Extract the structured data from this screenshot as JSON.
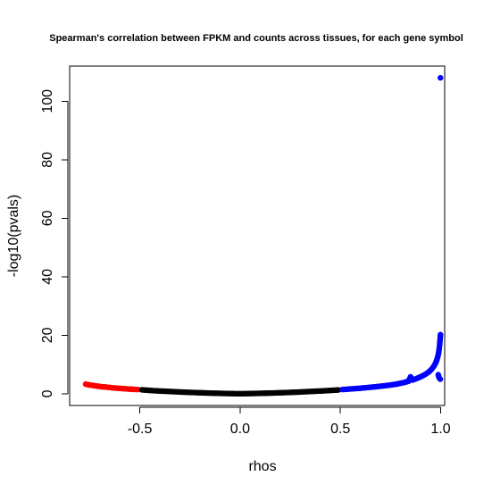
{
  "chart_data": {
    "type": "scatter",
    "title": "Spearman's correlation between FPKM and counts across tissues, for each gene symbol",
    "xlabel": "rhos",
    "ylabel": "-log10(pvals)",
    "xlim": [
      -0.85,
      1.02
    ],
    "ylim": [
      -4,
      112
    ],
    "x_ticks": [
      -0.5,
      0.0,
      0.5,
      1.0
    ],
    "x_tick_labels": [
      "-0.5",
      "0.0",
      "0.5",
      "1.0"
    ],
    "y_ticks": [
      0,
      20,
      40,
      60,
      80,
      100
    ],
    "y_tick_labels": [
      "0",
      "20",
      "40",
      "60",
      "80",
      "100"
    ],
    "grid": false,
    "series": [
      {
        "color": "#ff0000",
        "points": [
          [
            -0.77,
            3.3
          ],
          [
            -0.75,
            3.0
          ],
          [
            -0.73,
            2.8
          ],
          [
            -0.71,
            2.6
          ],
          [
            -0.69,
            2.4
          ],
          [
            -0.67,
            2.3
          ],
          [
            -0.65,
            2.15
          ],
          [
            -0.63,
            2.0
          ],
          [
            -0.61,
            1.9
          ],
          [
            -0.59,
            1.8
          ],
          [
            -0.57,
            1.7
          ],
          [
            -0.55,
            1.6
          ],
          [
            -0.53,
            1.5
          ],
          [
            -0.51,
            1.45
          ]
        ]
      },
      {
        "color": "#000000",
        "points": [
          [
            -0.49,
            1.35
          ],
          [
            -0.46,
            1.2
          ],
          [
            -0.43,
            1.05
          ],
          [
            -0.4,
            0.95
          ],
          [
            -0.37,
            0.85
          ],
          [
            -0.34,
            0.75
          ],
          [
            -0.31,
            0.65
          ],
          [
            -0.28,
            0.55
          ],
          [
            -0.25,
            0.48
          ],
          [
            -0.22,
            0.4
          ],
          [
            -0.19,
            0.33
          ],
          [
            -0.16,
            0.26
          ],
          [
            -0.13,
            0.2
          ],
          [
            -0.1,
            0.15
          ],
          [
            -0.07,
            0.1
          ],
          [
            -0.04,
            0.06
          ],
          [
            -0.01,
            0.02
          ],
          [
            0.02,
            0.04
          ],
          [
            0.05,
            0.08
          ],
          [
            0.08,
            0.12
          ],
          [
            0.11,
            0.17
          ],
          [
            0.14,
            0.22
          ],
          [
            0.17,
            0.28
          ],
          [
            0.2,
            0.35
          ],
          [
            0.23,
            0.42
          ],
          [
            0.26,
            0.5
          ],
          [
            0.29,
            0.58
          ],
          [
            0.32,
            0.68
          ],
          [
            0.35,
            0.78
          ],
          [
            0.38,
            0.88
          ],
          [
            0.41,
            0.98
          ],
          [
            0.44,
            1.1
          ],
          [
            0.47,
            1.22
          ],
          [
            0.49,
            1.32
          ]
        ]
      },
      {
        "color": "#0000ff",
        "points": [
          [
            0.51,
            1.45
          ],
          [
            0.54,
            1.6
          ],
          [
            0.57,
            1.75
          ],
          [
            0.6,
            1.9
          ],
          [
            0.63,
            2.1
          ],
          [
            0.66,
            2.3
          ],
          [
            0.69,
            2.5
          ],
          [
            0.72,
            2.75
          ],
          [
            0.75,
            3.0
          ],
          [
            0.78,
            3.3
          ],
          [
            0.8,
            3.6
          ],
          [
            0.82,
            3.9
          ],
          [
            0.84,
            4.3
          ],
          [
            0.85,
            5.8
          ],
          [
            0.86,
            4.7
          ],
          [
            0.88,
            5.2
          ],
          [
            0.9,
            5.8
          ],
          [
            0.92,
            6.5
          ],
          [
            0.94,
            7.4
          ],
          [
            0.955,
            8.4
          ],
          [
            0.965,
            9.3
          ],
          [
            0.975,
            10.5
          ],
          [
            0.982,
            11.8
          ],
          [
            0.988,
            13.3
          ],
          [
            0.992,
            15.0
          ],
          [
            0.995,
            16.8
          ],
          [
            0.997,
            18.5
          ],
          [
            0.999,
            20.2
          ],
          [
            0.988,
            6.5
          ],
          [
            0.992,
            5.5
          ],
          [
            0.998,
            5.0
          ],
          [
            0.999,
            108.0
          ]
        ]
      }
    ]
  }
}
